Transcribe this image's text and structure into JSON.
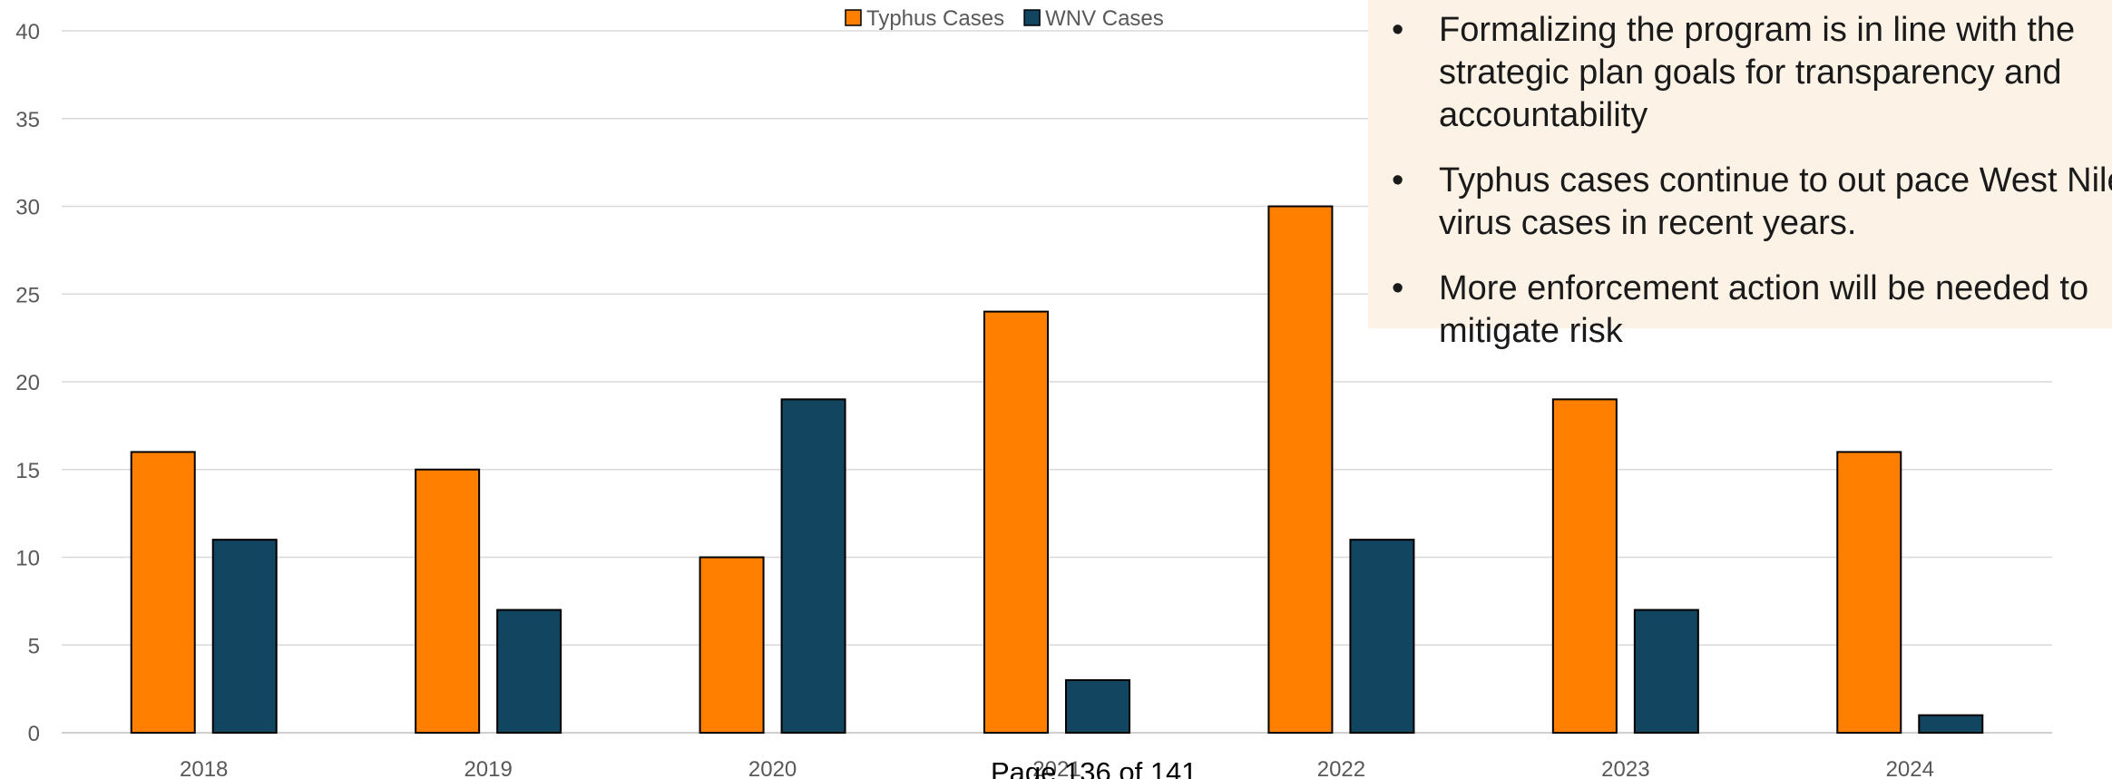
{
  "chart_data": {
    "type": "bar",
    "categories": [
      "2018",
      "2019",
      "2020",
      "2021",
      "2022",
      "2023",
      "2024"
    ],
    "series": [
      {
        "name": "Typhus Cases",
        "values": [
          16,
          15,
          10,
          24,
          30,
          19,
          16
        ],
        "color": "#ff8000"
      },
      {
        "name": "WNV Cases",
        "values": [
          11,
          7,
          19,
          3,
          11,
          7,
          1
        ],
        "color": "#124560"
      }
    ],
    "ylim": [
      0,
      40
    ],
    "yticks": [
      "0",
      "5",
      "10",
      "15",
      "20",
      "25",
      "30",
      "35",
      "40"
    ],
    "grid": true,
    "legend_position": "top-center",
    "bar_outline_color": "#000000",
    "gridline_color": "#d9d9d9"
  },
  "notes": {
    "bullet": "•",
    "items": [
      [
        "Formalizing the program is in line with the",
        "strategic plan goals for transparency and",
        "accountability"
      ],
      [
        "Typhus cases continue to out pace West Nile",
        "virus cases in recent years."
      ],
      [
        "More enforcement action will be needed to",
        "mitigate risk"
      ]
    ]
  },
  "footer": {
    "page_label": "Page 136 of 141"
  }
}
